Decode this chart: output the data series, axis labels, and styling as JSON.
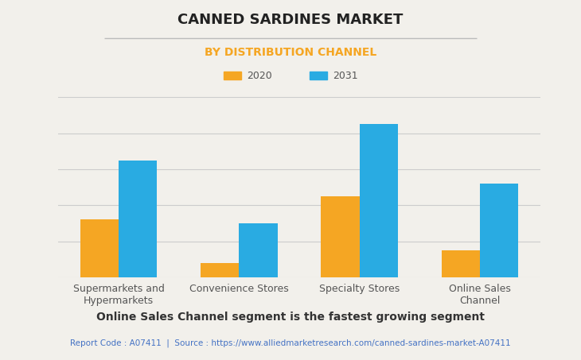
{
  "title": "CANNED SARDINES MARKET",
  "subtitle": "BY DISTRIBUTION CHANNEL",
  "categories": [
    "Supermarkets and\nHypermarkets",
    "Convenience Stores",
    "Specialty Stores",
    "Online Sales\nChannel"
  ],
  "values_2020": [
    3.2,
    0.8,
    4.5,
    1.5
  ],
  "values_2031": [
    6.5,
    3.0,
    8.5,
    5.2
  ],
  "color_2020": "#F5A623",
  "color_2031": "#29ABE2",
  "legend_labels": [
    "2020",
    "2031"
  ],
  "subtitle_color": "#F5A623",
  "title_color": "#222222",
  "background_color": "#F2F0EB",
  "plot_background": "#F2F0EB",
  "grid_color": "#CCCCCC",
  "bar_width": 0.32,
  "footer_text": "Online Sales Channel segment is the fastest growing segment",
  "source_text": "Report Code : A07411  |  Source : https://www.alliedmarketresearch.com/canned-sardines-market-A07411",
  "source_color": "#4472C4",
  "ylim": [
    0,
    10
  ]
}
